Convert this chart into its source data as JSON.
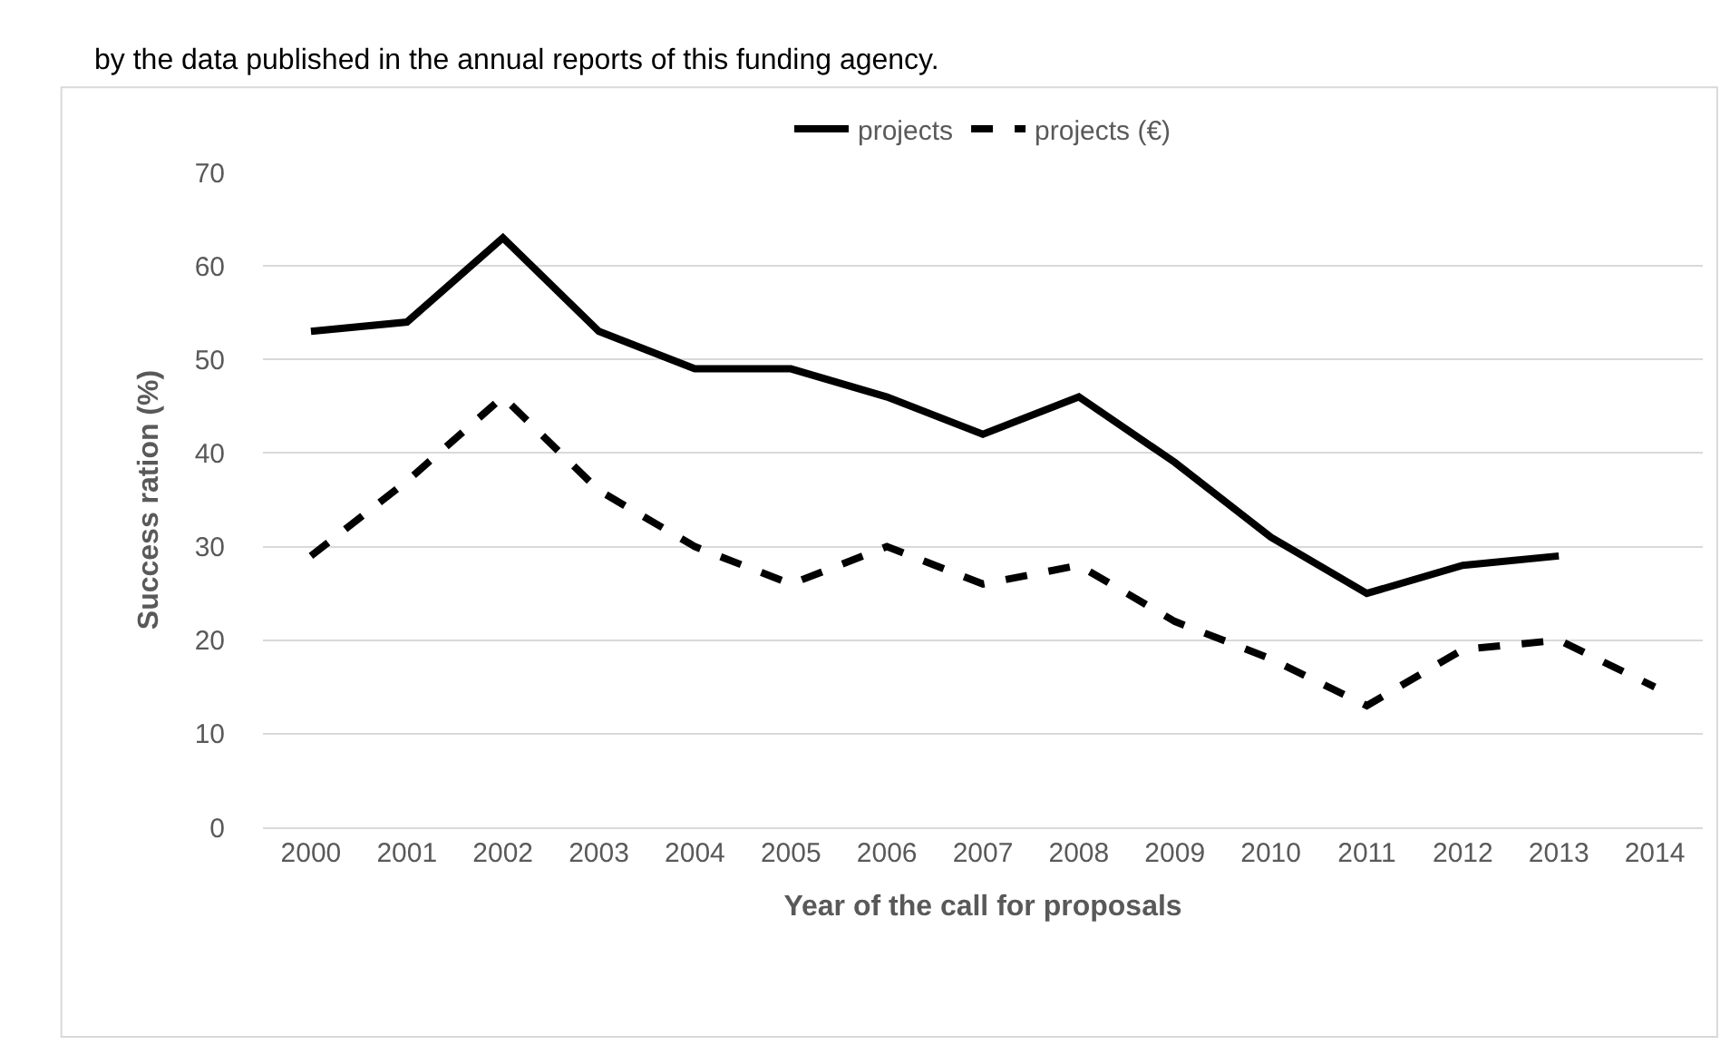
{
  "chart_data": {
    "type": "line",
    "categories": [
      "2000",
      "2001",
      "2002",
      "2003",
      "2004",
      "2005",
      "2006",
      "2007",
      "2008",
      "2009",
      "2010",
      "2011",
      "2012",
      "2013",
      "2014"
    ],
    "series": [
      {
        "name": "projects",
        "color": "#000000",
        "line_style": "solid",
        "values": [
          53,
          54,
          63,
          53,
          49,
          49,
          46,
          42,
          46,
          39,
          31,
          25,
          28,
          29,
          null
        ]
      },
      {
        "name": "projects (€)",
        "color": "#000000",
        "line_style": "dashed",
        "values": [
          29,
          37,
          46,
          36,
          30,
          26,
          30,
          26,
          28,
          22,
          18,
          13,
          19,
          20,
          15
        ]
      }
    ],
    "xlabel": "Year of the call for proposals",
    "ylabel": "Success ration (%)",
    "ylim": [
      0,
      70
    ],
    "yticks": [
      0,
      10,
      20,
      30,
      40,
      50,
      60,
      70
    ],
    "grid": "y",
    "legend": "top",
    "marker": "none",
    "annotations": [
      "by the data published in the annual reports of this funding agency."
    ]
  }
}
